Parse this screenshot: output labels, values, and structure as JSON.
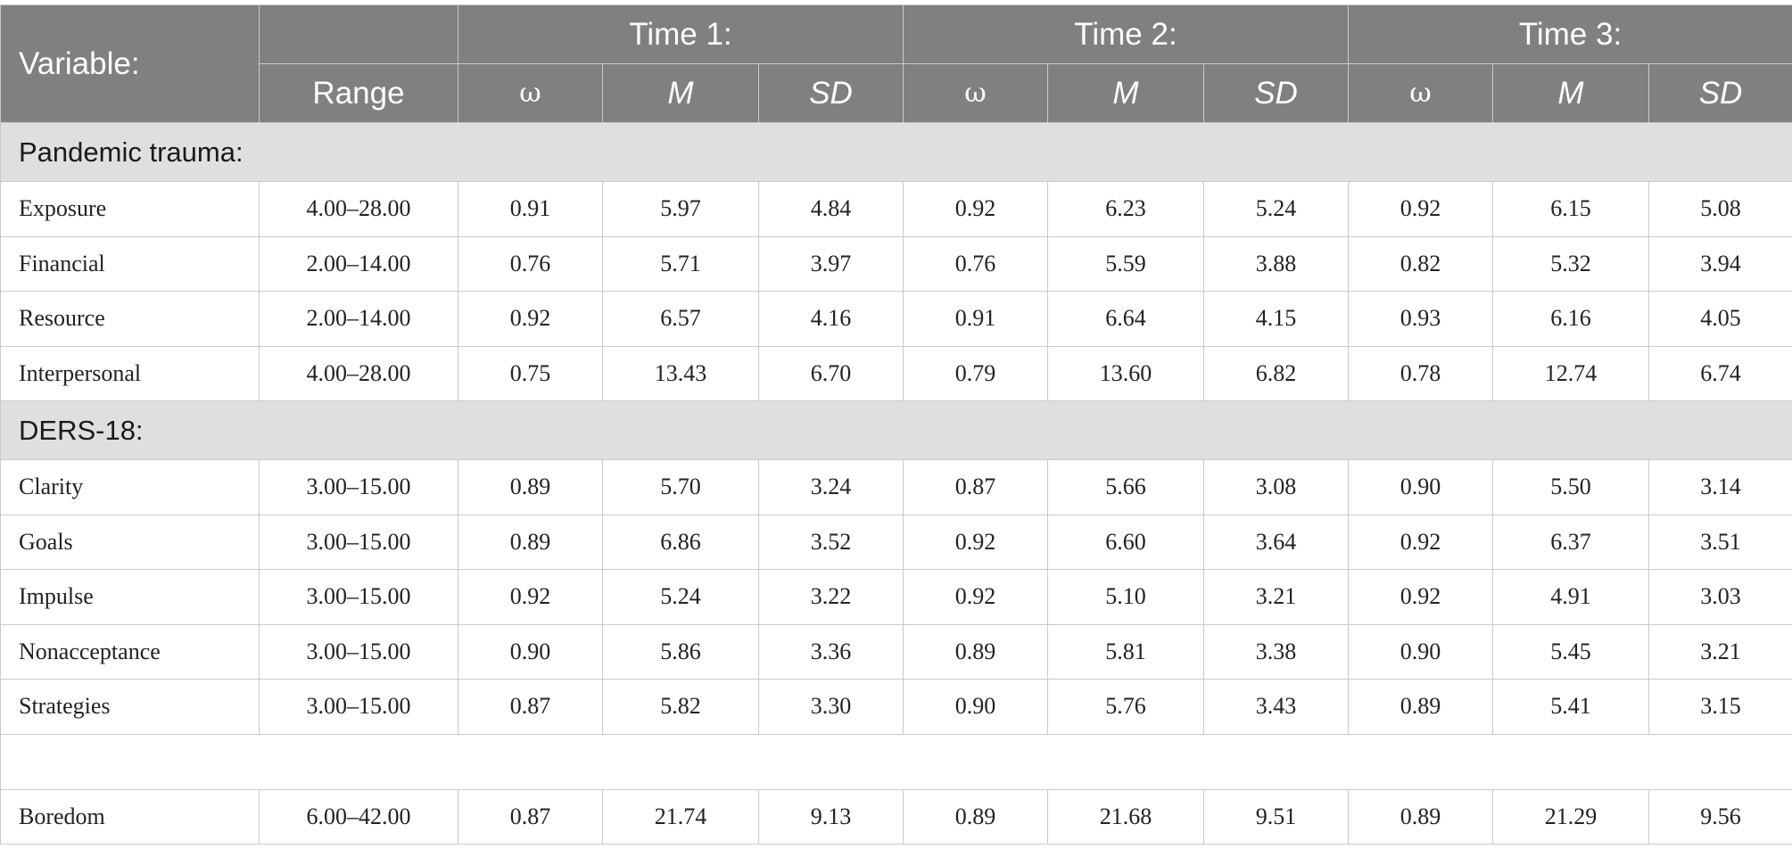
{
  "header": {
    "variable": "Variable:",
    "range": "Range",
    "times": [
      "Time 1:",
      "Time 2:",
      "Time 3:"
    ],
    "sub": [
      "ω",
      "M",
      "SD"
    ]
  },
  "sections": [
    {
      "title": "Pandemic trauma:",
      "rows": [
        {
          "name": "Exposure",
          "range": "4.00–28.00",
          "vals": [
            "0.91",
            "5.97",
            "4.84",
            "0.92",
            "6.23",
            "5.24",
            "0.92",
            "6.15",
            "5.08"
          ]
        },
        {
          "name": "Financial",
          "range": "2.00–14.00",
          "vals": [
            "0.76",
            "5.71",
            "3.97",
            "0.76",
            "5.59",
            "3.88",
            "0.82",
            "5.32",
            "3.94"
          ]
        },
        {
          "name": "Resource",
          "range": "2.00–14.00",
          "vals": [
            "0.92",
            "6.57",
            "4.16",
            "0.91",
            "6.64",
            "4.15",
            "0.93",
            "6.16",
            "4.05"
          ]
        },
        {
          "name": "Interpersonal",
          "range": "4.00–28.00",
          "vals": [
            "0.75",
            "13.43",
            "6.70",
            "0.79",
            "13.60",
            "6.82",
            "0.78",
            "12.74",
            "6.74"
          ]
        }
      ]
    },
    {
      "title": "DERS-18:",
      "rows": [
        {
          "name": "Clarity",
          "range": "3.00–15.00",
          "vals": [
            "0.89",
            "5.70",
            "3.24",
            "0.87",
            "5.66",
            "3.08",
            "0.90",
            "5.50",
            "3.14"
          ]
        },
        {
          "name": "Goals",
          "range": "3.00–15.00",
          "vals": [
            "0.89",
            "6.86",
            "3.52",
            "0.92",
            "6.60",
            "3.64",
            "0.92",
            "6.37",
            "3.51"
          ]
        },
        {
          "name": "Impulse",
          "range": "3.00–15.00",
          "vals": [
            "0.92",
            "5.24",
            "3.22",
            "0.92",
            "5.10",
            "3.21",
            "0.92",
            "4.91",
            "3.03"
          ]
        },
        {
          "name": "Nonacceptance",
          "range": "3.00–15.00",
          "vals": [
            "0.90",
            "5.86",
            "3.36",
            "0.89",
            "5.81",
            "3.38",
            "0.90",
            "5.45",
            "3.21"
          ]
        },
        {
          "name": "Strategies",
          "range": "3.00–15.00",
          "vals": [
            "0.87",
            "5.82",
            "3.30",
            "0.90",
            "5.76",
            "3.43",
            "0.89",
            "5.41",
            "3.15"
          ]
        }
      ]
    }
  ],
  "tail_rows": [
    {
      "name": "Boredom",
      "range": "6.00–42.00",
      "vals": [
        "0.87",
        "21.74",
        "9.13",
        "0.89",
        "21.68",
        "9.51",
        "0.89",
        "21.29",
        "9.56"
      ]
    }
  ]
}
